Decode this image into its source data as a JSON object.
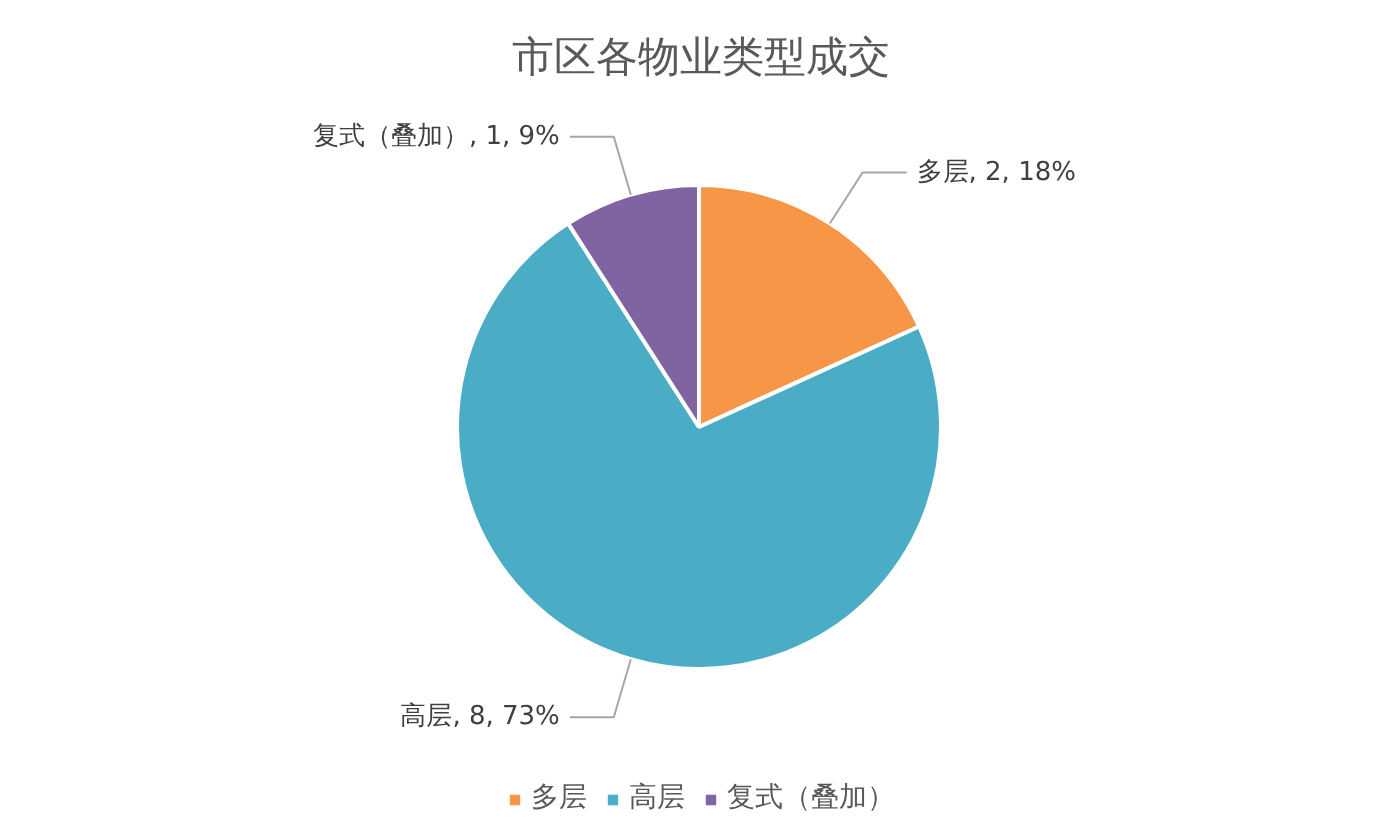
{
  "chart_data": {
    "type": "pie",
    "title": "市区各物业类型成交",
    "categories": [
      "多层",
      "高层",
      "复式（叠加）"
    ],
    "values": [
      2,
      8,
      1
    ],
    "colors": [
      "#f79646",
      "#4bacc6",
      "#8064a2"
    ],
    "value_labels": [
      "多层, 2, 18%",
      "高层, 8, 73%",
      "复式（叠加）, 1, 9%"
    ],
    "legend": "bottom"
  }
}
